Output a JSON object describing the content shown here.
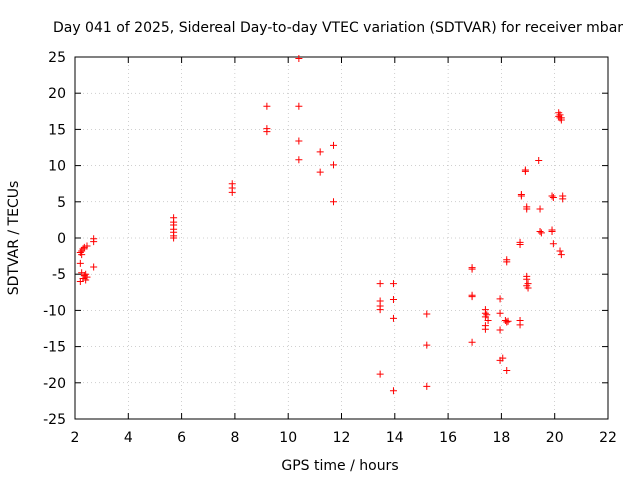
{
  "chart_data": {
    "type": "scatter",
    "title": "Day 041 of 2025, Sidereal Day-to-day VTEC variation (SDTVAR) for receiver mbar",
    "xlabel": "GPS time / hours",
    "ylabel": "SDTVAR / TECUs",
    "xlim": [
      2,
      22
    ],
    "ylim": [
      -25,
      25
    ],
    "xticks": [
      "2",
      "4",
      "6",
      "8",
      "10",
      "12",
      "14",
      "16",
      "18",
      "20",
      "22"
    ],
    "yticks": [
      "-25",
      "-20",
      "-15",
      "-10",
      "-5",
      "0",
      "5",
      "10",
      "15",
      "20",
      "25"
    ],
    "grid": true,
    "marker": "plus",
    "color": "#ff0000",
    "x": [
      2.2,
      2.25,
      2.3,
      2.35,
      2.4,
      2.45,
      2.2,
      2.25,
      2.3,
      2.35,
      2.4,
      2.45,
      2.2,
      2.25,
      2.7,
      2.7,
      2.7,
      5.7,
      5.7,
      5.7,
      5.7,
      5.7,
      5.7,
      5.7,
      7.9,
      7.9,
      7.9,
      9.2,
      9.2,
      9.2,
      10.4,
      10.4,
      10.4,
      10.4,
      11.2,
      11.2,
      11.7,
      11.7,
      11.7,
      13.45,
      13.45,
      13.45,
      13.45,
      13.45,
      13.95,
      13.95,
      13.95,
      13.95,
      15.2,
      15.2,
      15.2,
      16.9,
      16.9,
      16.9,
      16.9,
      16.9,
      17.4,
      17.4,
      17.4,
      17.4,
      17.4,
      17.45,
      17.5,
      17.95,
      17.95,
      17.95,
      17.95,
      18.05,
      18.15,
      18.2,
      18.2,
      18.2,
      18.2,
      18.25,
      18.7,
      18.7,
      18.7,
      18.7,
      18.75,
      18.75,
      18.9,
      18.9,
      18.95,
      18.95,
      18.95,
      18.95,
      18.95,
      19.0,
      19.0,
      19.4,
      19.45,
      19.45,
      19.5,
      19.9,
      19.9,
      19.9,
      19.95,
      19.95,
      20.15,
      20.15,
      20.2,
      20.2,
      20.25,
      20.25,
      20.3,
      20.3,
      20.2,
      20.25
    ],
    "y": [
      -2.0,
      -1.8,
      -1.5,
      -1.3,
      -5.8,
      -5.4,
      -3.5,
      -4.8,
      -5.6,
      -5.2,
      -5.0,
      -1.1,
      -6.0,
      -2.3,
      -0.5,
      -0.1,
      -4.0,
      2.8,
      2.2,
      1.8,
      1.2,
      0.8,
      0.3,
      0.0,
      7.5,
      6.9,
      6.3,
      18.2,
      15.1,
      14.7,
      24.8,
      18.2,
      13.4,
      10.8,
      11.9,
      9.1,
      12.8,
      10.1,
      5.0,
      -6.3,
      -8.7,
      -9.4,
      -9.9,
      -18.8,
      -6.3,
      -8.5,
      -11.1,
      -21.1,
      -10.5,
      -14.8,
      -20.5,
      -4.1,
      -4.3,
      -7.9,
      -8.1,
      -14.4,
      -9.9,
      -10.4,
      -10.9,
      -12.1,
      -12.6,
      -10.6,
      -11.4,
      -8.4,
      -10.4,
      -12.7,
      -16.9,
      -16.6,
      -11.4,
      -11.6,
      -18.3,
      -3.3,
      -3.0,
      -11.5,
      -11.4,
      -12.0,
      -0.9,
      -0.6,
      6.0,
      5.8,
      9.2,
      9.4,
      4.0,
      4.3,
      -5.3,
      -5.7,
      -6.6,
      -6.9,
      -6.3,
      10.7,
      4.0,
      0.9,
      0.7,
      5.8,
      0.9,
      1.1,
      -0.8,
      5.6,
      17.3,
      16.8,
      17.0,
      16.6,
      16.6,
      16.3,
      5.4,
      5.8,
      -1.8,
      -2.3
    ]
  }
}
